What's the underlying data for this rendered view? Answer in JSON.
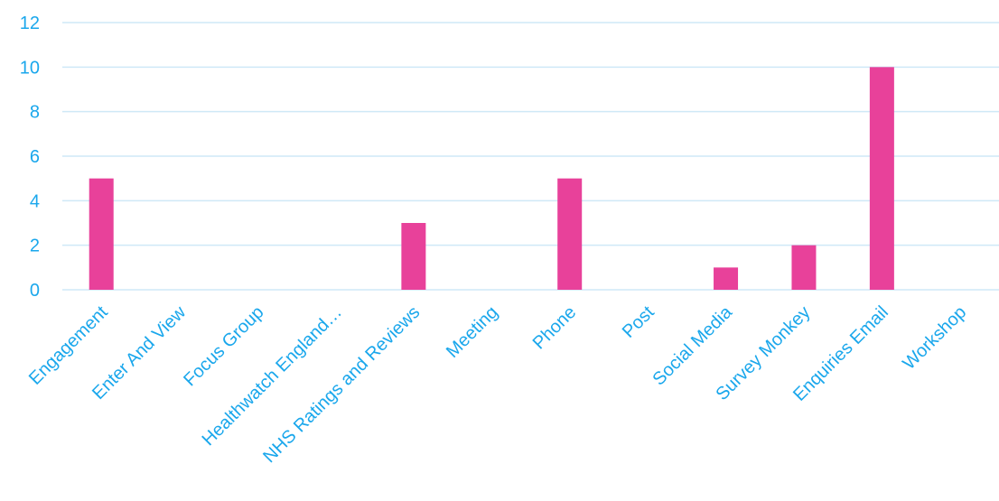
{
  "chart_data": {
    "type": "bar",
    "categories": [
      "Engagement",
      "Enter And View",
      "Focus Group",
      "Healthwatch England…",
      "NHS Ratings and Reviews",
      "Meeting",
      "Phone",
      "Post",
      "Social Media",
      "Survey Monkey",
      "Enquiries Email",
      "Workshop"
    ],
    "values": [
      5,
      0,
      0,
      0,
      3,
      0,
      5,
      0,
      1,
      2,
      10,
      0
    ],
    "yticks": [
      "0",
      "2",
      "4",
      "6",
      "8",
      "10",
      "12"
    ],
    "ylim": [
      0,
      12
    ],
    "grid": true,
    "title": "",
    "xlabel": "",
    "ylabel": "",
    "colors": {
      "bar": "#e8419a",
      "text": "#1aa7ec",
      "grid": "#cfe9f7"
    }
  }
}
